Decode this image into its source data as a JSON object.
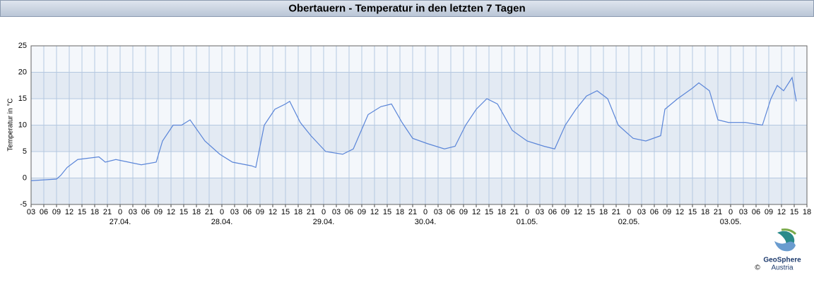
{
  "chart_data": {
    "type": "line",
    "title": "Obertauern - Temperatur in den letzten 7 Tagen",
    "ylabel": "Temperatur in °C",
    "brand": "GeoSphere",
    "brand_sub": "Austria",
    "copyright": "©",
    "x": [
      0,
      6,
      7,
      8.5,
      11,
      16,
      17.5,
      20,
      26,
      29.5,
      31,
      33.5,
      35.5,
      37.5,
      41,
      44.5,
      47.5,
      52,
      53,
      55,
      57.5,
      60,
      61,
      63.5,
      66,
      69.5,
      73.5,
      76,
      79.5,
      82.5,
      85,
      87.5,
      90,
      93.5,
      97.5,
      100,
      102.5,
      105,
      107.5,
      110,
      113.5,
      117,
      121,
      123.5,
      126,
      128.5,
      131,
      133.5,
      136,
      138.5,
      142,
      145,
      148.5,
      149.5,
      152.5,
      156,
      157.5,
      160,
      162,
      164.5,
      168.5,
      172.5,
      174.5,
      176,
      177.5,
      179.5,
      180.5
    ],
    "series": [
      {
        "name": "Temperatur",
        "color": "#5a85d8",
        "values": [
          -0.5,
          -0.2,
          0.5,
          2,
          3.5,
          4,
          3,
          3.5,
          2.5,
          3,
          7,
          10,
          10,
          11,
          7,
          4.5,
          3,
          2.3,
          2,
          10,
          13,
          14,
          14.5,
          10.5,
          8,
          5,
          4.5,
          5.5,
          12,
          13.5,
          14,
          10.5,
          7.5,
          6.5,
          5.5,
          6,
          10,
          13,
          15,
          14,
          9,
          7,
          6,
          5.5,
          10,
          13,
          15.5,
          16.5,
          15,
          10,
          7.5,
          7,
          8,
          13,
          15,
          17,
          18,
          16.5,
          11,
          10.5,
          10.5,
          10,
          15,
          17.5,
          16.5,
          19,
          14.5
        ]
      }
    ],
    "xlim": [
      0,
      183
    ],
    "ylim": [
      -5,
      25
    ],
    "yticks": [
      -5,
      0,
      5,
      10,
      15,
      20,
      25
    ],
    "xticks": [
      {
        "value": 0,
        "label": "03"
      },
      {
        "value": 3,
        "label": "06"
      },
      {
        "value": 6,
        "label": "09"
      },
      {
        "value": 9,
        "label": "12"
      },
      {
        "value": 12,
        "label": "15"
      },
      {
        "value": 15,
        "label": "18"
      },
      {
        "value": 18,
        "label": "21"
      },
      {
        "value": 21,
        "label": "0"
      },
      {
        "value": 24,
        "label": "03"
      },
      {
        "value": 27,
        "label": "06"
      },
      {
        "value": 30,
        "label": "09"
      },
      {
        "value": 33,
        "label": "12"
      },
      {
        "value": 36,
        "label": "15"
      },
      {
        "value": 39,
        "label": "18"
      },
      {
        "value": 42,
        "label": "21"
      },
      {
        "value": 45,
        "label": "0"
      },
      {
        "value": 48,
        "label": "03"
      },
      {
        "value": 51,
        "label": "06"
      },
      {
        "value": 54,
        "label": "09"
      },
      {
        "value": 57,
        "label": "12"
      },
      {
        "value": 60,
        "label": "15"
      },
      {
        "value": 63,
        "label": "18"
      },
      {
        "value": 66,
        "label": "21"
      },
      {
        "value": 69,
        "label": "0"
      },
      {
        "value": 72,
        "label": "03"
      },
      {
        "value": 75,
        "label": "06"
      },
      {
        "value": 78,
        "label": "09"
      },
      {
        "value": 81,
        "label": "12"
      },
      {
        "value": 84,
        "label": "15"
      },
      {
        "value": 87,
        "label": "18"
      },
      {
        "value": 90,
        "label": "21"
      },
      {
        "value": 93,
        "label": "0"
      },
      {
        "value": 96,
        "label": "03"
      },
      {
        "value": 99,
        "label": "06"
      },
      {
        "value": 102,
        "label": "09"
      },
      {
        "value": 105,
        "label": "12"
      },
      {
        "value": 108,
        "label": "15"
      },
      {
        "value": 111,
        "label": "18"
      },
      {
        "value": 114,
        "label": "21"
      },
      {
        "value": 117,
        "label": "0"
      },
      {
        "value": 120,
        "label": "03"
      },
      {
        "value": 123,
        "label": "06"
      },
      {
        "value": 126,
        "label": "09"
      },
      {
        "value": 129,
        "label": "12"
      },
      {
        "value": 132,
        "label": "15"
      },
      {
        "value": 135,
        "label": "18"
      },
      {
        "value": 138,
        "label": "21"
      },
      {
        "value": 141,
        "label": "0"
      },
      {
        "value": 144,
        "label": "03"
      },
      {
        "value": 147,
        "label": "06"
      },
      {
        "value": 150,
        "label": "09"
      },
      {
        "value": 153,
        "label": "12"
      },
      {
        "value": 156,
        "label": "15"
      },
      {
        "value": 159,
        "label": "18"
      },
      {
        "value": 162,
        "label": "21"
      },
      {
        "value": 165,
        "label": "0"
      },
      {
        "value": 168,
        "label": "03"
      },
      {
        "value": 171,
        "label": "06"
      },
      {
        "value": 174,
        "label": "09"
      },
      {
        "value": 177,
        "label": "12"
      },
      {
        "value": 180,
        "label": "15"
      },
      {
        "value": 183,
        "label": "18"
      }
    ],
    "day_labels": [
      {
        "value": 21,
        "label": "27.04."
      },
      {
        "value": 45,
        "label": "28.04."
      },
      {
        "value": 69,
        "label": "29.04."
      },
      {
        "value": 93,
        "label": "30.04."
      },
      {
        "value": 117,
        "label": "01.05."
      },
      {
        "value": 141,
        "label": "02.05."
      },
      {
        "value": 165,
        "label": "03.05."
      }
    ],
    "grid": true
  }
}
